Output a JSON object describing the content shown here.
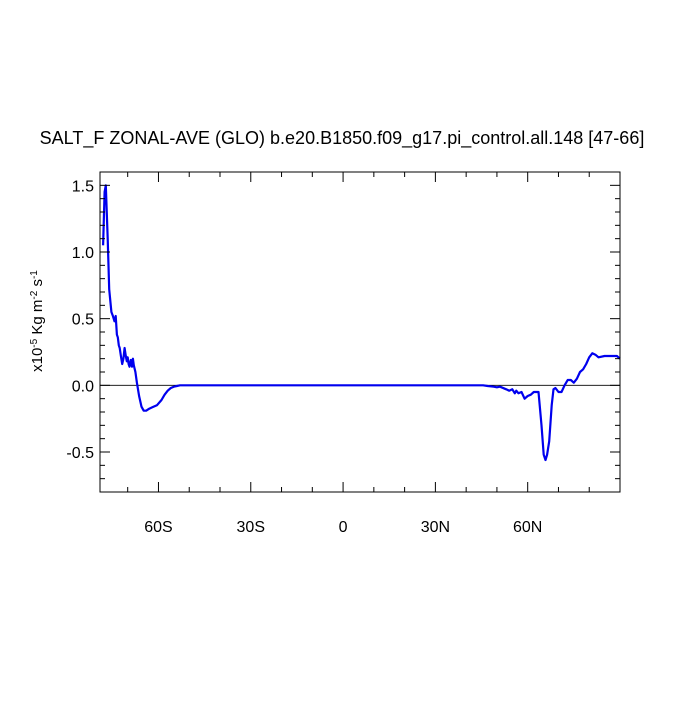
{
  "chart_data": {
    "type": "line",
    "title": "SALT_F ZONAL-AVE (GLO) b.e20.B1850.f09_g17.pi_control.all.148 [47-66]",
    "ylabel_parts": {
      "prefix": "x10",
      "exp1": "-5",
      "mid": " Kg m",
      "exp2": "-2",
      "mid2": " s",
      "exp3": "-1"
    },
    "xlim": [
      -79,
      90
    ],
    "ylim": [
      -0.8,
      1.6
    ],
    "x_ticks": [
      {
        "value": -60,
        "label": "60S"
      },
      {
        "value": -30,
        "label": "30S"
      },
      {
        "value": 0,
        "label": "0"
      },
      {
        "value": 30,
        "label": "30N"
      },
      {
        "value": 60,
        "label": "60N"
      }
    ],
    "y_ticks": [
      {
        "value": 1.5,
        "label": "1.5"
      },
      {
        "value": 1.0,
        "label": "1.0"
      },
      {
        "value": 0.5,
        "label": "0.5"
      },
      {
        "value": 0.0,
        "label": "0.0"
      },
      {
        "value": -0.5,
        "label": "-0.5"
      }
    ],
    "reference_line": 0.0,
    "line_color": "#0000ee",
    "series": [
      {
        "x": [
          -78.0,
          -77.5,
          -77.1,
          -76.5,
          -76.0,
          -75.3,
          -74.8,
          -74.3,
          -73.9,
          -73.5,
          -73.2,
          -72.9,
          -72.6,
          -72.2,
          -71.8,
          -71.4,
          -71.0,
          -70.6,
          -70.3,
          -70.0,
          -69.7,
          -69.4,
          -69.0,
          -68.6,
          -68.3,
          -68.0,
          -67.5,
          -67.0,
          -66.3,
          -65.5,
          -64.8,
          -64.0,
          -63.0,
          -62.0,
          -60.5,
          -59.0,
          -58.0,
          -57.0,
          -56.0,
          -55.0,
          -54.0,
          -53.0,
          -52.0,
          -50.8,
          -40.0,
          -20.0,
          0.0,
          20.0,
          40.0,
          45.5,
          47.0,
          49.0,
          50.0,
          51.0,
          53.0,
          54.0,
          55.0,
          55.8,
          56.3,
          57.0,
          58.0,
          59.0,
          60.0,
          61.0,
          62.0,
          63.5,
          64.5,
          65.2,
          65.8,
          66.3,
          67.0,
          67.8,
          68.4,
          69.0,
          70.0,
          71.0,
          72.0,
          73.0,
          74.0,
          75.0,
          76.0,
          77.0,
          78.0,
          79.0,
          80.0,
          81.0,
          82.0,
          83.0,
          85.0,
          87.0,
          89.0,
          90.0
        ],
        "y": [
          1.05,
          1.45,
          1.5,
          1.1,
          0.72,
          0.55,
          0.52,
          0.48,
          0.52,
          0.38,
          0.36,
          0.3,
          0.28,
          0.22,
          0.16,
          0.2,
          0.28,
          0.22,
          0.18,
          0.21,
          0.16,
          0.14,
          0.19,
          0.14,
          0.2,
          0.15,
          0.1,
          0.02,
          -0.08,
          -0.16,
          -0.19,
          -0.19,
          -0.175,
          -0.165,
          -0.15,
          -0.11,
          -0.07,
          -0.04,
          -0.02,
          -0.01,
          -0.005,
          0.0,
          0.0,
          0.0,
          0.0,
          0.0,
          0.0,
          0.0,
          0.0,
          0.0,
          -0.005,
          -0.01,
          -0.015,
          -0.01,
          -0.03,
          -0.04,
          -0.03,
          -0.06,
          -0.04,
          -0.06,
          -0.05,
          -0.1,
          -0.08,
          -0.07,
          -0.05,
          -0.05,
          -0.3,
          -0.52,
          -0.56,
          -0.52,
          -0.42,
          -0.15,
          -0.03,
          -0.02,
          -0.05,
          -0.05,
          0.0,
          0.04,
          0.04,
          0.02,
          0.05,
          0.1,
          0.12,
          0.16,
          0.21,
          0.24,
          0.23,
          0.21,
          0.22,
          0.22,
          0.22,
          0.2
        ]
      }
    ]
  }
}
